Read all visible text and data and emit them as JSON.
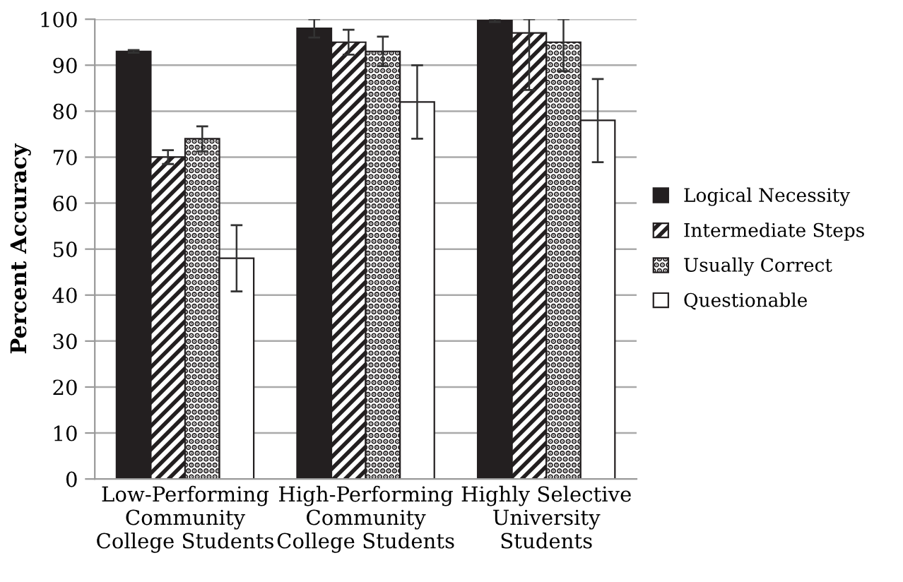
{
  "chart_data": {
    "type": "bar",
    "ylabel": "Percent Accuracy",
    "categories": [
      "Low-Performing\nCommunity\nCollege Students",
      "High-Performing\nCommunity\nCollege Students",
      "Highly Selective\nUniversity\nStudents"
    ],
    "series": [
      {
        "name": "Logical Necessity",
        "color": "#231f20",
        "values": [
          93,
          98,
          99.7
        ],
        "errors": [
          [
            92.7,
            93.3
          ],
          [
            96,
            100
          ],
          [
            99.4,
            100
          ]
        ]
      },
      {
        "name": "Intermediate Steps",
        "color": "#231f20",
        "values": [
          70,
          95,
          97
        ],
        "errors": [
          [
            68.5,
            71.5
          ],
          [
            92.3,
            97.7
          ],
          [
            84.6,
            100
          ]
        ]
      },
      {
        "name": "Usually Correct",
        "color": "#231f20",
        "values": [
          74,
          93,
          95
        ],
        "errors": [
          [
            71.3,
            76.7
          ],
          [
            89.8,
            96.2
          ],
          [
            88.7,
            100
          ]
        ]
      },
      {
        "name": "Questionable",
        "color": "#ffffff",
        "values": [
          48,
          82,
          78
        ],
        "errors": [
          [
            40.8,
            55.2
          ],
          [
            74,
            90
          ],
          [
            68.9,
            87
          ]
        ]
      }
    ],
    "ylim": [
      0,
      100
    ],
    "yticks": [
      0,
      10,
      20,
      30,
      40,
      50,
      60,
      70,
      80,
      90,
      100
    ],
    "grid": "y",
    "legend": "right"
  }
}
